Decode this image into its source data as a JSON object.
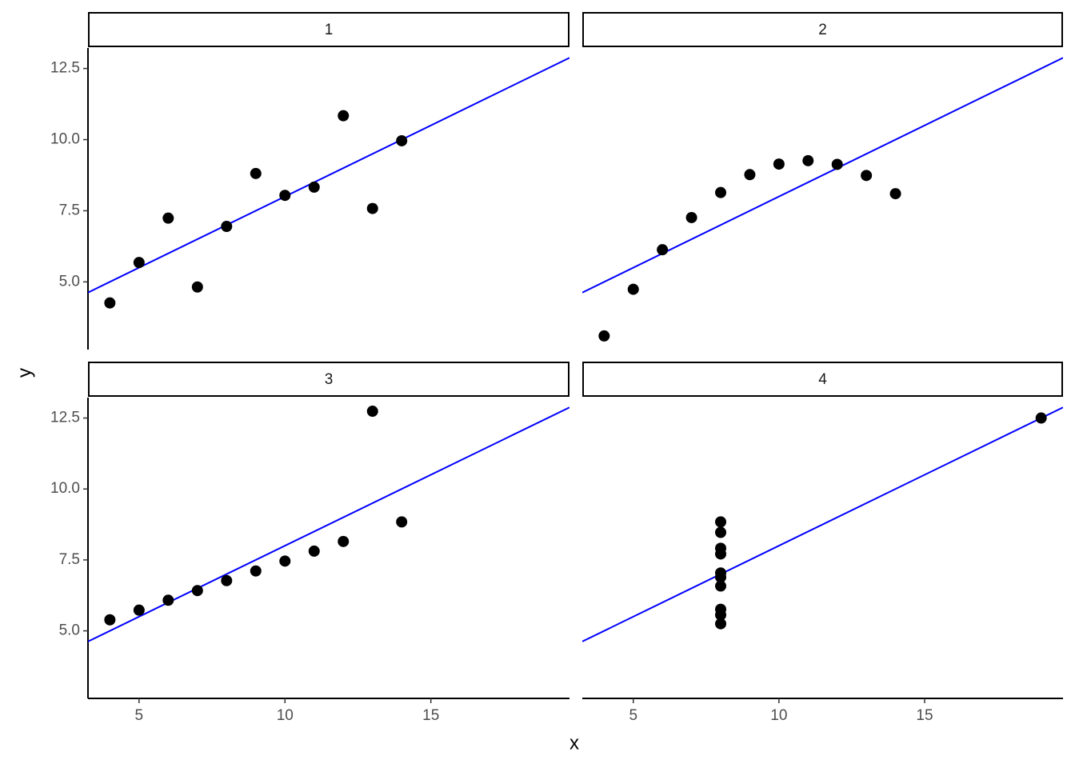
{
  "axis_labels": {
    "x": "x",
    "y": "y"
  },
  "chart_data": [
    {
      "type": "scatter",
      "title": "1",
      "x": [
        10,
        8,
        13,
        9,
        11,
        14,
        6,
        4,
        12,
        7,
        5
      ],
      "y": [
        8.04,
        6.95,
        7.58,
        8.81,
        8.33,
        9.96,
        7.24,
        4.26,
        10.84,
        4.82,
        5.68
      ],
      "color": "#000000",
      "fit": {
        "intercept": 3.0,
        "slope": 0.5,
        "color": "#0000ff"
      },
      "xlim": [
        3.25,
        19.75
      ],
      "ylim": [
        2.62,
        13.22
      ],
      "xticks": [
        5,
        10,
        15
      ],
      "yticks": [
        {
          "value": 5,
          "label": "5.0"
        },
        {
          "value": 7.5,
          "label": "7.5"
        },
        {
          "value": 10,
          "label": "10.0"
        },
        {
          "value": 12.5,
          "label": "12.5"
        }
      ]
    },
    {
      "type": "scatter",
      "title": "2",
      "x": [
        10,
        8,
        13,
        9,
        11,
        14,
        6,
        4,
        12,
        7,
        5
      ],
      "y": [
        9.14,
        8.14,
        8.74,
        8.77,
        9.26,
        8.1,
        6.13,
        3.1,
        9.13,
        7.26,
        4.74
      ],
      "color": "#000000",
      "fit": {
        "intercept": 3.0,
        "slope": 0.5,
        "color": "#0000ff"
      },
      "xlim": [
        3.25,
        19.75
      ],
      "ylim": [
        2.62,
        13.22
      ],
      "xticks": [
        5,
        10,
        15
      ],
      "yticks": [
        {
          "value": 5,
          "label": "5.0"
        },
        {
          "value": 7.5,
          "label": "7.5"
        },
        {
          "value": 10,
          "label": "10.0"
        },
        {
          "value": 12.5,
          "label": "12.5"
        }
      ]
    },
    {
      "type": "scatter",
      "title": "3",
      "x": [
        10,
        8,
        13,
        9,
        11,
        14,
        6,
        4,
        12,
        7,
        5
      ],
      "y": [
        7.46,
        6.77,
        12.74,
        7.11,
        7.81,
        8.84,
        6.08,
        5.39,
        8.15,
        6.42,
        5.73
      ],
      "color": "#000000",
      "fit": {
        "intercept": 3.0,
        "slope": 0.5,
        "color": "#0000ff"
      },
      "xlim": [
        3.25,
        19.75
      ],
      "ylim": [
        2.62,
        13.22
      ],
      "xticks": [
        5,
        10,
        15
      ],
      "yticks": [
        {
          "value": 5,
          "label": "5.0"
        },
        {
          "value": 7.5,
          "label": "7.5"
        },
        {
          "value": 10,
          "label": "10.0"
        },
        {
          "value": 12.5,
          "label": "12.5"
        }
      ]
    },
    {
      "type": "scatter",
      "title": "4",
      "x": [
        8,
        8,
        8,
        8,
        8,
        8,
        8,
        19,
        8,
        8,
        8
      ],
      "y": [
        6.58,
        5.76,
        7.71,
        8.84,
        8.47,
        7.04,
        5.25,
        12.5,
        5.56,
        7.91,
        6.89
      ],
      "color": "#000000",
      "fit": {
        "intercept": 3.0,
        "slope": 0.5,
        "color": "#0000ff"
      },
      "xlim": [
        3.25,
        19.75
      ],
      "ylim": [
        2.62,
        13.22
      ],
      "xticks": [
        5,
        10,
        15
      ],
      "yticks": [
        {
          "value": 5,
          "label": "5.0"
        },
        {
          "value": 7.5,
          "label": "7.5"
        },
        {
          "value": 10,
          "label": "10.0"
        },
        {
          "value": 12.5,
          "label": "12.5"
        }
      ]
    }
  ]
}
